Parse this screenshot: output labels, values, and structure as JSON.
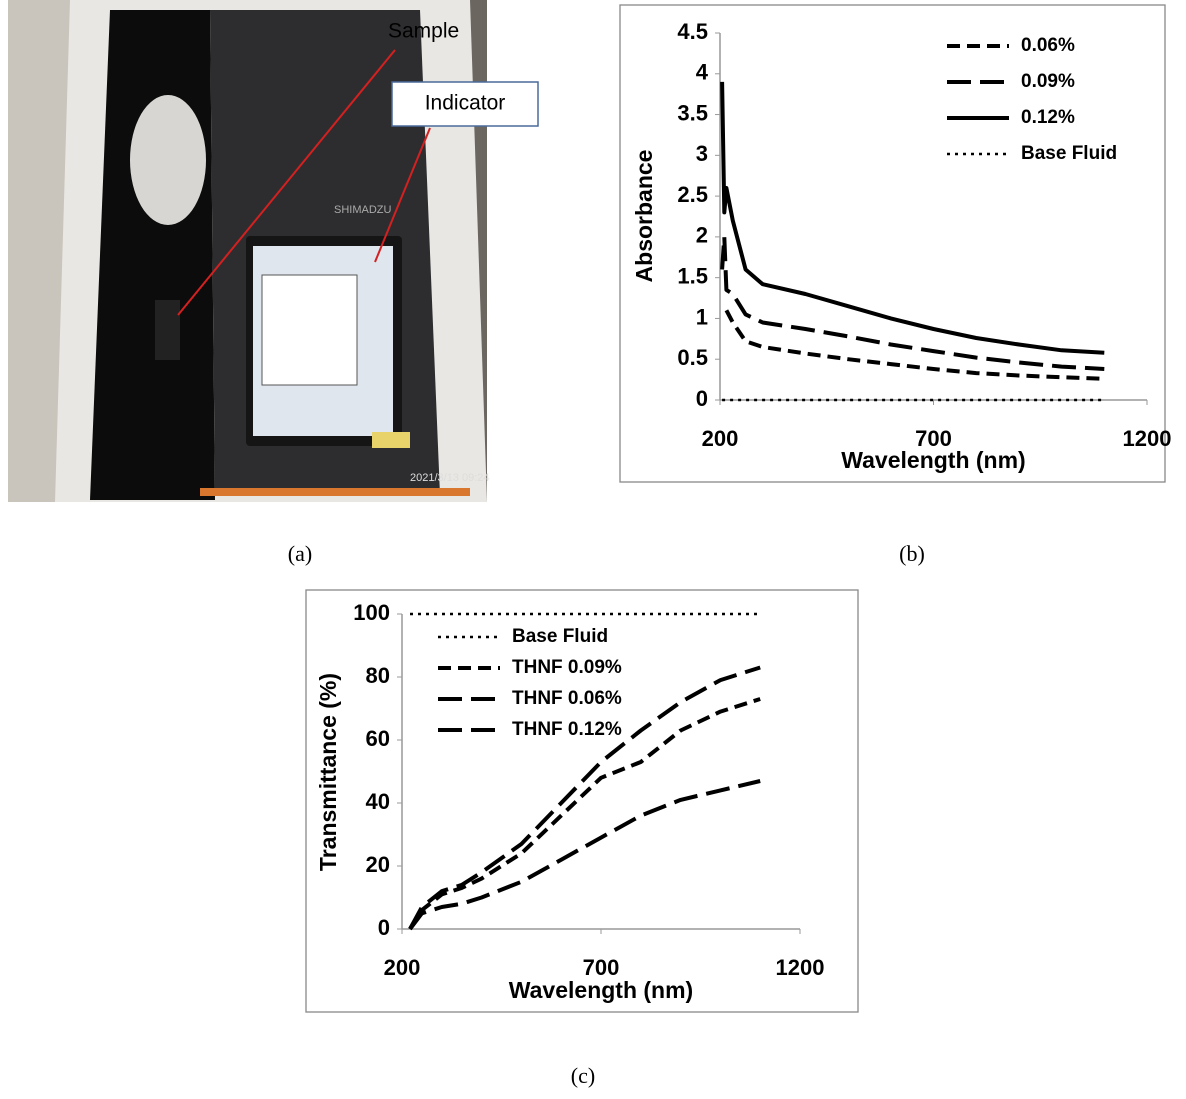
{
  "photo": {
    "labels": [
      "Sample",
      "Indicator"
    ],
    "brand": "SHIMADZU",
    "timestamp": "2021/3/13 09:24",
    "caption": "(a)"
  },
  "chart_data": [
    {
      "type": "line",
      "caption": "(b)",
      "x_label": "Wavelength (nm)",
      "y_label": "Absorbance",
      "x": [
        205,
        210,
        215,
        230,
        260,
        300,
        400,
        500,
        600,
        700,
        800,
        900,
        1000,
        1100
      ],
      "series": [
        {
          "name": "0.06%",
          "color": "#000000",
          "style": "dashed",
          "values": [
            null,
            null,
            1.1,
            0.95,
            0.72,
            0.65,
            0.57,
            0.5,
            0.44,
            0.38,
            0.33,
            0.3,
            0.28,
            0.26
          ]
        },
        {
          "name": "0.09%",
          "color": "#000000",
          "style": "long-dashed",
          "values": [
            1.6,
            2.0,
            1.35,
            1.3,
            1.05,
            0.95,
            0.87,
            0.78,
            0.68,
            0.6,
            0.52,
            0.46,
            0.41,
            0.38
          ]
        },
        {
          "name": "0.12%",
          "color": "#000000",
          "style": "solid",
          "values": [
            3.9,
            2.3,
            2.6,
            2.2,
            1.6,
            1.42,
            1.3,
            1.15,
            1.0,
            0.87,
            0.76,
            0.68,
            0.61,
            0.58
          ]
        },
        {
          "name": "Base Fluid",
          "color": "#000000",
          "style": "dotted",
          "values": [
            0,
            0,
            0,
            0,
            0,
            0,
            0,
            0,
            0,
            0,
            0,
            0,
            0,
            0
          ]
        }
      ],
      "xlim": [
        200,
        1200
      ],
      "xticks": [
        200,
        700,
        1200
      ],
      "ylim": [
        0,
        4.5
      ],
      "yticks": [
        0,
        0.5,
        1,
        1.5,
        2,
        2.5,
        3,
        3.5,
        4,
        4.5
      ],
      "legend": "upper right",
      "grid": false
    },
    {
      "type": "line",
      "caption": "(c)",
      "x_label": "Wavelength (nm)",
      "y_label": "Transmittance (%)",
      "x": [
        220,
        250,
        300,
        350,
        400,
        500,
        600,
        700,
        800,
        900,
        1000,
        1100
      ],
      "series": [
        {
          "name": "Base Fluid",
          "color": "#000000",
          "style": "dotted",
          "values": [
            100,
            100,
            100,
            100,
            100,
            100,
            100,
            100,
            100,
            100,
            100,
            100
          ]
        },
        {
          "name": "THNF 0.09%",
          "color": "#000000",
          "style": "dashed",
          "values": [
            0,
            6,
            11,
            13,
            16,
            24,
            36,
            48,
            53,
            63,
            69,
            73
          ]
        },
        {
          "name": "THNF 0.06%",
          "color": "#000000",
          "style": "long-dashed",
          "values": [
            0,
            7,
            12,
            14,
            18,
            27,
            40,
            53,
            63,
            72,
            79,
            83
          ]
        },
        {
          "name": "THNF 0.12%",
          "color": "#000000",
          "style": "long-dashed",
          "values": [
            0,
            5,
            7,
            8,
            10,
            15,
            22,
            29,
            36,
            41,
            44,
            47
          ]
        }
      ],
      "xlim": [
        200,
        1200
      ],
      "xticks": [
        200,
        700,
        1200
      ],
      "ylim": [
        0,
        100
      ],
      "yticks": [
        0,
        20,
        40,
        60,
        80,
        100
      ],
      "legend": "upper left",
      "grid": false
    }
  ]
}
